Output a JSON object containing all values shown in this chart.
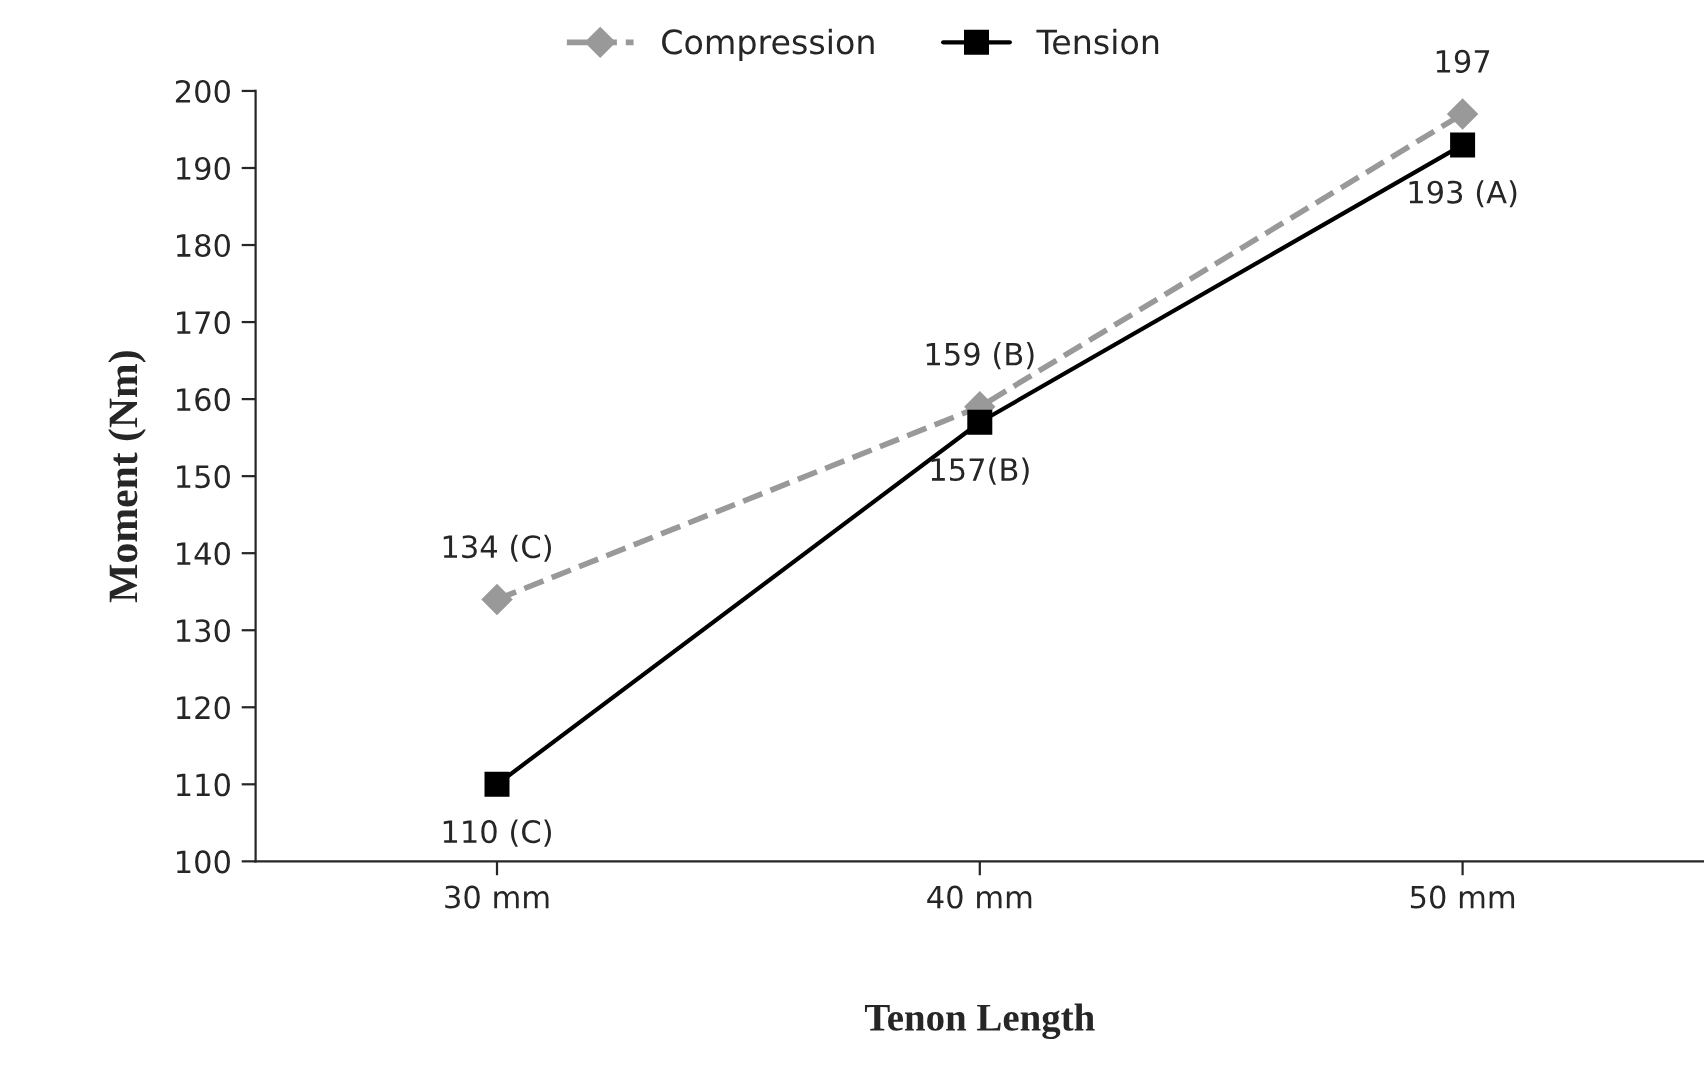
{
  "chart_data": {
    "type": "line",
    "xlabel": "Tenon Length",
    "ylabel": "Moment (Nm)",
    "categories": [
      "30 mm",
      "40 mm",
      "50 mm"
    ],
    "series": [
      {
        "name": "Compression",
        "color": "#999999",
        "values": [
          134,
          159,
          197
        ],
        "value_labels": [
          "134 (C)",
          "159 (B)",
          "197"
        ],
        "marker": "diamond",
        "line_style": "dashed"
      },
      {
        "name": "Tension",
        "color": "#000000",
        "values": [
          110,
          157,
          193
        ],
        "value_labels": [
          "110 (C)",
          "157(B)",
          "193 (A)"
        ],
        "marker": "square",
        "line_style": "solid"
      }
    ],
    "ylim": [
      100,
      200
    ],
    "yticks": [
      100,
      110,
      120,
      130,
      140,
      150,
      160,
      170,
      180,
      190,
      200
    ],
    "grid": false,
    "legend": "top"
  }
}
